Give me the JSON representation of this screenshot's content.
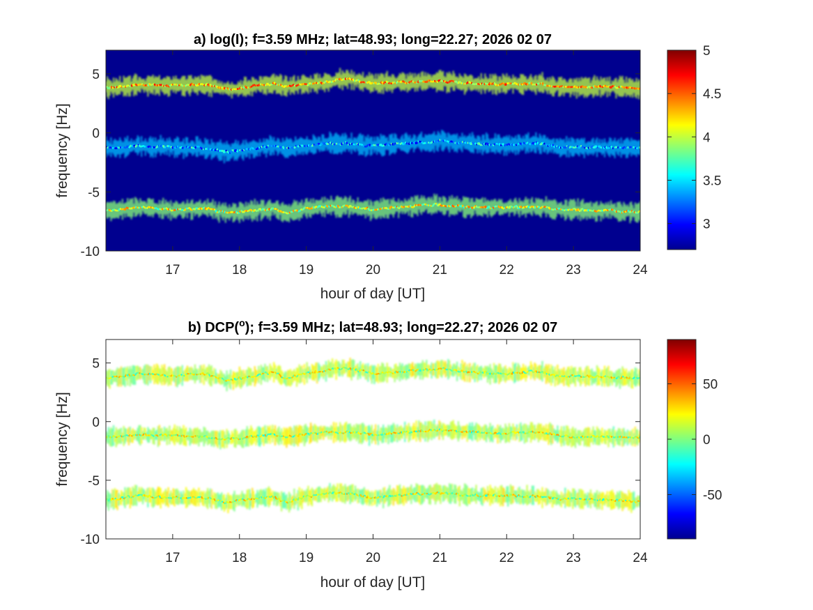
{
  "chart_data": [
    {
      "type": "heatmap",
      "title": "a) log(I); f=3.59 MHz;  lat=48.93; long=22.27; 2026 02 07",
      "xlabel": "hour of day [UT]",
      "ylabel": "frequency [Hz]",
      "xlim": [
        16,
        24
      ],
      "ylim": [
        -10,
        7
      ],
      "xticks": [
        17,
        18,
        19,
        20,
        21,
        22,
        23,
        24
      ],
      "yticks": [
        -10,
        -5,
        0,
        5
      ],
      "background_color": "#00008f",
      "colorbar": {
        "colormap": "jet",
        "range": [
          2.7,
          5
        ],
        "ticks": [
          3,
          3.5,
          4,
          4.5,
          5
        ]
      },
      "traces": [
        {
          "x": [
            16,
            16.5,
            17,
            17.5,
            17.8,
            18,
            18.5,
            18.7,
            19,
            19.3,
            19.6,
            20,
            20.5,
            21,
            21.5,
            22,
            22.5,
            22.8,
            23,
            23.5,
            24
          ],
          "y": [
            3.8,
            4.1,
            4.0,
            4.1,
            3.7,
            3.8,
            4.2,
            3.9,
            4.1,
            4.3,
            4.6,
            4.2,
            4.3,
            4.4,
            4.2,
            4.1,
            4.2,
            3.9,
            3.9,
            3.9,
            3.8
          ],
          "peak": 4.7
        },
        {
          "x": [
            16,
            16.5,
            17,
            17.5,
            17.8,
            18,
            18.5,
            18.7,
            19,
            19.3,
            19.6,
            20,
            20.5,
            21,
            21.5,
            22,
            22.5,
            22.8,
            23,
            23.5,
            24
          ],
          "y": [
            -1.3,
            -1.1,
            -1.2,
            -1.3,
            -1.6,
            -1.5,
            -1.1,
            -1.3,
            -1.1,
            -0.9,
            -0.9,
            -1.1,
            -0.9,
            -0.7,
            -0.9,
            -1.0,
            -0.9,
            -1.2,
            -1.2,
            -1.2,
            -1.3
          ],
          "peak": 3.8
        },
        {
          "x": [
            16,
            16.5,
            17,
            17.5,
            17.8,
            18,
            18.5,
            18.7,
            19,
            19.3,
            19.6,
            20,
            20.5,
            21,
            21.5,
            22,
            22.5,
            22.8,
            23,
            23.5,
            24
          ],
          "y": [
            -6.6,
            -6.3,
            -6.5,
            -6.4,
            -6.8,
            -6.7,
            -6.4,
            -6.8,
            -6.4,
            -6.2,
            -6.2,
            -6.5,
            -6.2,
            -6.1,
            -6.3,
            -6.3,
            -6.3,
            -6.5,
            -6.5,
            -6.6,
            -6.7
          ],
          "peak": 4.5
        }
      ]
    },
    {
      "type": "heatmap",
      "title": "b) DCP(°); f=3.59 MHz;  lat=48.93; long=22.27; 2026 02 07",
      "title_prefix": "b) DCP(",
      "title_superscript": "o",
      "title_suffix": "); f=3.59 MHz;  lat=48.93; long=22.27; 2026 02 07",
      "xlabel": "hour of day [UT]",
      "ylabel": "frequency [Hz]",
      "xlim": [
        16,
        24
      ],
      "ylim": [
        -10,
        7
      ],
      "xticks": [
        17,
        18,
        19,
        20,
        21,
        22,
        23,
        24
      ],
      "yticks": [
        -10,
        -5,
        0,
        5
      ],
      "background_color": "#ffffff",
      "colorbar": {
        "colormap": "jet",
        "range": [
          -90,
          90
        ],
        "ticks": [
          -50,
          0,
          50
        ]
      },
      "traces": [
        {
          "x": [
            16,
            16.5,
            17,
            17.5,
            17.8,
            18,
            18.5,
            18.7,
            19,
            19.3,
            19.6,
            20,
            20.5,
            21,
            21.5,
            22,
            22.5,
            22.8,
            23,
            23.5,
            24
          ],
          "y": [
            3.7,
            4.1,
            3.9,
            4.1,
            3.5,
            3.7,
            4.2,
            3.7,
            4.1,
            4.4,
            4.6,
            4.1,
            4.3,
            4.5,
            4.2,
            4.1,
            4.3,
            3.8,
            3.9,
            3.8,
            3.7
          ],
          "dcp": 10
        },
        {
          "x": [
            16,
            16.5,
            17,
            17.5,
            17.8,
            18,
            18.5,
            18.7,
            19,
            19.3,
            19.6,
            20,
            20.5,
            21,
            21.5,
            22,
            22.5,
            22.8,
            23,
            23.5,
            24
          ],
          "y": [
            -1.3,
            -1.1,
            -1.2,
            -1.3,
            -1.5,
            -1.4,
            -1.1,
            -1.3,
            -1.1,
            -0.9,
            -0.9,
            -1.1,
            -0.9,
            -0.7,
            -0.9,
            -1.0,
            -0.9,
            -1.2,
            -1.3,
            -1.3,
            -1.4
          ],
          "dcp": 10
        },
        {
          "x": [
            16,
            16.5,
            17,
            17.5,
            17.8,
            18,
            18.5,
            18.7,
            19,
            19.3,
            19.6,
            20,
            20.5,
            21,
            21.5,
            22,
            22.5,
            22.8,
            23,
            23.5,
            24
          ],
          "y": [
            -6.7,
            -6.3,
            -6.5,
            -6.5,
            -6.9,
            -6.7,
            -6.4,
            -6.9,
            -6.4,
            -6.1,
            -6.1,
            -6.5,
            -6.2,
            -6.1,
            -6.3,
            -6.3,
            -6.4,
            -6.6,
            -6.5,
            -6.7,
            -6.8
          ],
          "dcp": 10
        }
      ]
    }
  ]
}
